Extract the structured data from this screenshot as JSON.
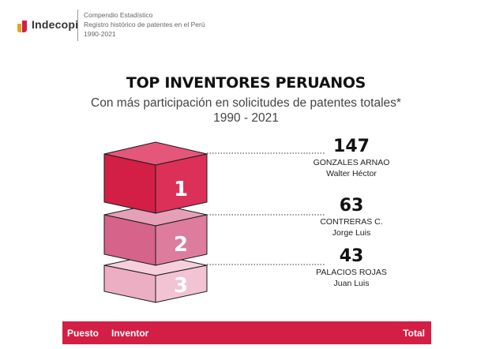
{
  "header": {
    "logo_text": "Indecopi",
    "meta_line1": "Compendio Estadístico",
    "meta_line2": "Registro histórico de patentes en el Perú",
    "meta_line3": "1990-2021"
  },
  "title": "TOP INVENTORES PERUANOS",
  "subtitle_line1": "Con más participación en solicitudes de patentes totales*",
  "subtitle_line2": "1990 - 2021",
  "ranking": [
    {
      "rank": "1",
      "total": "147",
      "name_line1": "GONZALES ARNAO",
      "name_line2": "Walter Héctor",
      "color": "#d31f45"
    },
    {
      "rank": "2",
      "total": "63",
      "name_line1": "CONTRERAS C.",
      "name_line2": "Jorge Luis",
      "color": "#d6638a"
    },
    {
      "rank": "3",
      "total": "43",
      "name_line1": "PALACIOS ROJAS",
      "name_line2": "Juan Luis",
      "color": "#ecaec3"
    }
  ],
  "table": {
    "col_puesto": "Puesto",
    "col_inventor": "Inventor",
    "col_total": "Total"
  },
  "colors": {
    "accent": "#d31f45",
    "cube2": "#d6638a",
    "cube3": "#ecaec3"
  }
}
